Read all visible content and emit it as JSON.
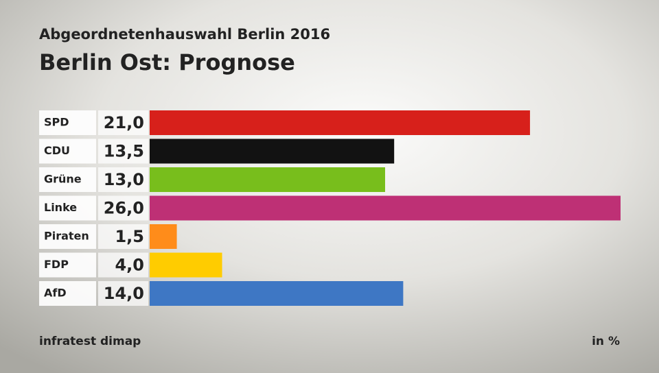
{
  "chart_data": {
    "type": "bar",
    "orientation": "horizontal",
    "subtitle": "Abgeordnetenhauswahl Berlin 2016",
    "title": "Berlin Ost: Prognose",
    "categories": [
      "SPD",
      "CDU",
      "Grüne",
      "Linke",
      "Piraten",
      "FDP",
      "AfD"
    ],
    "values": [
      21.0,
      13.5,
      13.0,
      26.0,
      1.5,
      4.0,
      14.0
    ],
    "value_labels": [
      "21,0",
      "13,5",
      "13,0",
      "26,0",
      "1,5",
      "4,0",
      "14,0"
    ],
    "colors": [
      "#d7201b",
      "#121212",
      "#78be1c",
      "#be3075",
      "#ff8c1a",
      "#ffcc00",
      "#3e77c4"
    ],
    "source": "infratest dimap",
    "unit": "in %"
  }
}
